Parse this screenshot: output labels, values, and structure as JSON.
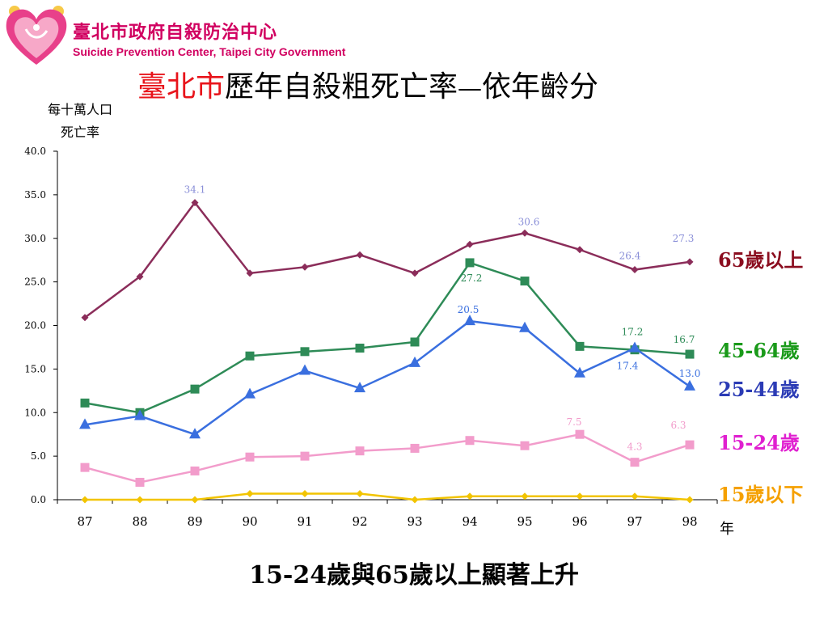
{
  "header": {
    "org_name_zh": "臺北市政府自殺防治中心",
    "org_name_en": "Suicide Prevention Center, Taipei City Government",
    "logo_icon": "heart-logo-icon"
  },
  "title": {
    "city": "臺北市",
    "main": "歷年自殺粗死亡率",
    "dash": "—",
    "suffix": "依年齡分"
  },
  "y_axis": {
    "line1": "每十萬人口",
    "line2": "死亡率"
  },
  "x_axis": {
    "unit": "年"
  },
  "footer_note": "15-24歲與65歲以上顯著上升",
  "chart_data": {
    "type": "line",
    "categories": [
      "87",
      "88",
      "89",
      "90",
      "91",
      "92",
      "93",
      "94",
      "95",
      "96",
      "97",
      "98"
    ],
    "ylim": [
      0,
      40
    ],
    "yticks": [
      "0.0",
      "5.0",
      "10.0",
      "15.0",
      "20.0",
      "25.0",
      "30.0",
      "35.0",
      "40.0"
    ],
    "grid": false,
    "legend_placement": "right",
    "series": [
      {
        "name": "65歲以上",
        "color": "#8b2d5a",
        "label_color": "#8b0d1f",
        "marker": "diamond",
        "values": [
          20.9,
          25.6,
          34.1,
          26.0,
          26.7,
          28.1,
          26.0,
          29.3,
          30.6,
          28.7,
          26.4,
          27.3
        ],
        "data_labels": [
          {
            "index": 2,
            "text": "34.1",
            "color": "#8a8fd8"
          },
          {
            "index": 8,
            "text": "30.6",
            "color": "#8a8fd8"
          },
          {
            "index": 10,
            "text": "26.4",
            "color": "#8a8fd8"
          },
          {
            "index": 11,
            "text": "27.3",
            "color": "#8a8fd8"
          }
        ]
      },
      {
        "name": "45-64歲",
        "color": "#2e8b57",
        "label_color": "#1a9a1a",
        "marker": "square",
        "values": [
          11.1,
          10.0,
          12.7,
          16.5,
          17.0,
          17.4,
          18.1,
          27.2,
          25.1,
          17.6,
          17.2,
          16.7
        ],
        "data_labels": [
          {
            "index": 7,
            "text": "27.2",
            "color": "#2e8b57"
          },
          {
            "index": 10,
            "text": "17.2",
            "color": "#2e8b57"
          },
          {
            "index": 11,
            "text": "16.7",
            "color": "#2e8b57"
          }
        ]
      },
      {
        "name": "25-44歲",
        "color": "#3a6fdf",
        "label_color": "#2b3bb5",
        "marker": "triangle",
        "values": [
          8.6,
          9.6,
          7.5,
          12.1,
          14.8,
          12.8,
          15.7,
          20.5,
          19.7,
          14.5,
          17.4,
          13.0
        ],
        "data_labels": [
          {
            "index": 7,
            "text": "20.5",
            "color": "#3a6fdf"
          },
          {
            "index": 10,
            "text": "17.4",
            "color": "#3a6fdf"
          },
          {
            "index": 11,
            "text": "13.0",
            "color": "#3a6fdf"
          }
        ]
      },
      {
        "name": "15-24歲",
        "color": "#f29ccb",
        "label_color": "#e020d0",
        "marker": "square",
        "values": [
          3.7,
          2.0,
          3.3,
          4.9,
          5.0,
          5.6,
          5.9,
          6.8,
          6.2,
          7.5,
          4.3,
          6.3
        ],
        "data_labels": [
          {
            "index": 9,
            "text": "7.5",
            "color": "#f29ccb"
          },
          {
            "index": 10,
            "text": "4.3",
            "color": "#f29ccb"
          },
          {
            "index": 11,
            "text": "6.3",
            "color": "#f29ccb"
          }
        ]
      },
      {
        "name": "15歲以下",
        "color": "#f2c400",
        "label_color": "#f5a000",
        "marker": "diamond",
        "values": [
          0.0,
          0.0,
          0.0,
          0.7,
          0.7,
          0.7,
          0.0,
          0.4,
          0.4,
          0.4,
          0.4,
          0.0
        ],
        "data_labels": []
      }
    ]
  }
}
